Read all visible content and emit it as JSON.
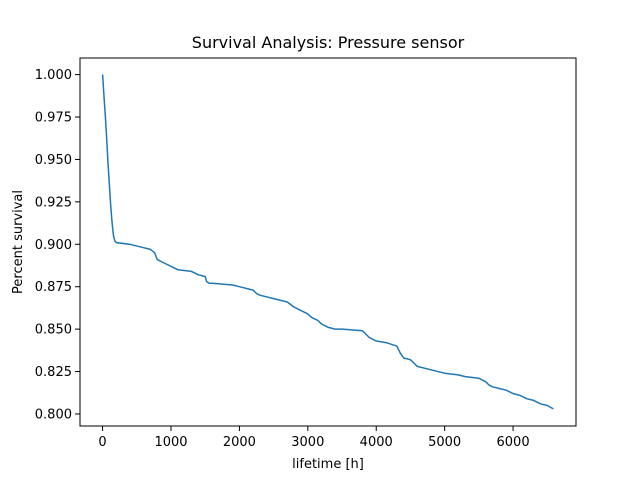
{
  "chart_data": {
    "type": "line",
    "title": "Survival Analysis: Pressure sensor",
    "xlabel": "lifetime [h]",
    "ylabel": "Percent survival",
    "xlim": [
      -330,
      6920
    ],
    "ylim": [
      0.7929,
      1.0098
    ],
    "x_ticks": [
      0,
      1000,
      2000,
      3000,
      4000,
      5000,
      6000
    ],
    "y_ticks": [
      0.8,
      0.825,
      0.85,
      0.875,
      0.9,
      0.925,
      0.95,
      0.975,
      1.0
    ],
    "x_tick_labels": [
      "0",
      "1000",
      "2000",
      "3000",
      "4000",
      "5000",
      "6000"
    ],
    "y_tick_labels": [
      "0.800",
      "0.825",
      "0.850",
      "0.875",
      "0.900",
      "0.925",
      "0.950",
      "0.975",
      "1.000"
    ],
    "grid": false,
    "legend": "none",
    "line_color": "#1f77b4",
    "series": [
      {
        "x": [
          0,
          20,
          40,
          60,
          80,
          100,
          120,
          140,
          160,
          180,
          200,
          400,
          600,
          700,
          760,
          800,
          900,
          1000,
          1100,
          1300,
          1400,
          1500,
          1520,
          1560,
          1600,
          1900,
          2000,
          2200,
          2250,
          2300,
          2500,
          2700,
          2800,
          2850,
          3000,
          3050,
          3150,
          3200,
          3300,
          3400,
          3500,
          3800,
          3900,
          4000,
          4150,
          4300,
          4350,
          4400,
          4500,
          4600,
          4800,
          5000,
          5200,
          5300,
          5500,
          5600,
          5650,
          5700,
          5800,
          5900,
          6000,
          6100,
          6200,
          6300,
          6400,
          6500,
          6590
        ],
        "y": [
          1.0,
          0.988,
          0.976,
          0.962,
          0.948,
          0.935,
          0.922,
          0.912,
          0.905,
          0.902,
          0.901,
          0.9,
          0.898,
          0.897,
          0.895,
          0.891,
          0.889,
          0.887,
          0.885,
          0.884,
          0.882,
          0.881,
          0.878,
          0.877,
          0.877,
          0.876,
          0.875,
          0.873,
          0.871,
          0.87,
          0.868,
          0.866,
          0.863,
          0.862,
          0.859,
          0.857,
          0.855,
          0.853,
          0.851,
          0.85,
          0.85,
          0.849,
          0.845,
          0.843,
          0.842,
          0.84,
          0.836,
          0.833,
          0.832,
          0.828,
          0.826,
          0.824,
          0.823,
          0.822,
          0.821,
          0.819,
          0.817,
          0.816,
          0.815,
          0.814,
          0.812,
          0.811,
          0.809,
          0.808,
          0.806,
          0.805,
          0.803
        ]
      }
    ]
  }
}
